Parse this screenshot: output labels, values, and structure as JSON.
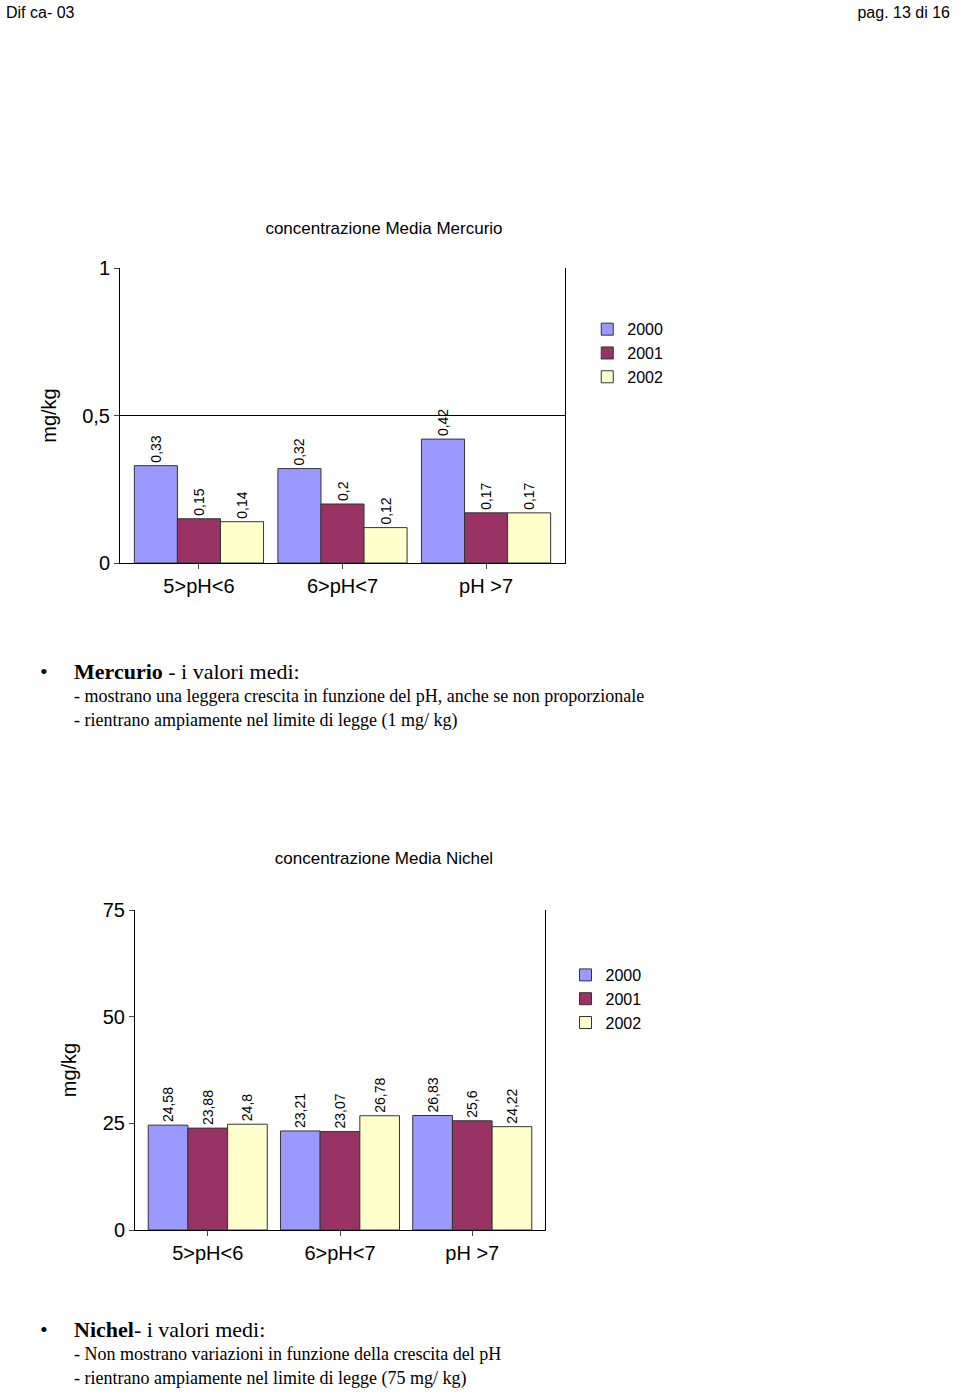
{
  "header": {
    "left": "Dif ca- 03",
    "right": "pag. 13 di 16"
  },
  "chart_data": [
    {
      "type": "bar",
      "title": "concentrazione Media Mercurio",
      "y_label": "mg/kg",
      "categories": [
        "5>pH<6",
        "6>pH<7",
        "pH >7"
      ],
      "series": [
        {
          "name": "2000",
          "color": "#9999ff",
          "values": [
            0.33,
            0.32,
            0.42
          ],
          "value_labels": [
            "0,33",
            "0,32",
            "0,42"
          ]
        },
        {
          "name": "2001",
          "color": "#993366",
          "values": [
            0.15,
            0.2,
            0.17
          ],
          "value_labels": [
            "0,15",
            "0,2",
            "0,17"
          ]
        },
        {
          "name": "2002",
          "color": "#ffffcc",
          "values": [
            0.14,
            0.12,
            0.17
          ],
          "value_labels": [
            "0,14",
            "0,12",
            "0,17"
          ]
        }
      ],
      "ylim": [
        0,
        1
      ],
      "yticks": [
        0,
        {
          "value": 0.5,
          "label": "0,5"
        },
        1
      ],
      "grid": true,
      "legend": "right",
      "data_labels": true
    },
    {
      "type": "bar",
      "title": "concentrazione Media Nichel",
      "y_label": "mg/kg",
      "categories": [
        "5>pH<6",
        "6>pH<7",
        "pH >7"
      ],
      "series": [
        {
          "name": "2000",
          "color": "#9999ff",
          "values": [
            24.58,
            23.21,
            26.83
          ],
          "value_labels": [
            "24,58",
            "23,21",
            "26,83"
          ]
        },
        {
          "name": "2001",
          "color": "#993366",
          "values": [
            23.88,
            23.07,
            25.6
          ],
          "value_labels": [
            "23,88",
            "23,07",
            "25,6"
          ]
        },
        {
          "name": "2002",
          "color": "#ffffcc",
          "values": [
            24.8,
            26.78,
            24.22
          ],
          "value_labels": [
            "24,8",
            "26,78",
            "24,22"
          ]
        }
      ],
      "ylim": [
        0,
        75
      ],
      "yticks": [
        0,
        25,
        50,
        75
      ],
      "grid": false,
      "legend": "right",
      "data_labels": true
    }
  ],
  "notes": [
    {
      "bold": "Mercurio",
      "text": " - i valori medi:",
      "items": [
        "- mostrano una leggera crescita in funzione del pH, anche se non proporzionale",
        "- rientrano ampiamente nel limite di legge (1 mg/ kg)"
      ]
    },
    {
      "bold": "Nichel",
      "text": "- i valori medi:",
      "items": [
        "- Non mostrano variazioni in funzione della crescita del pH",
        "- rientrano ampiamente nel limite di legge (75 mg/ kg)"
      ]
    }
  ]
}
